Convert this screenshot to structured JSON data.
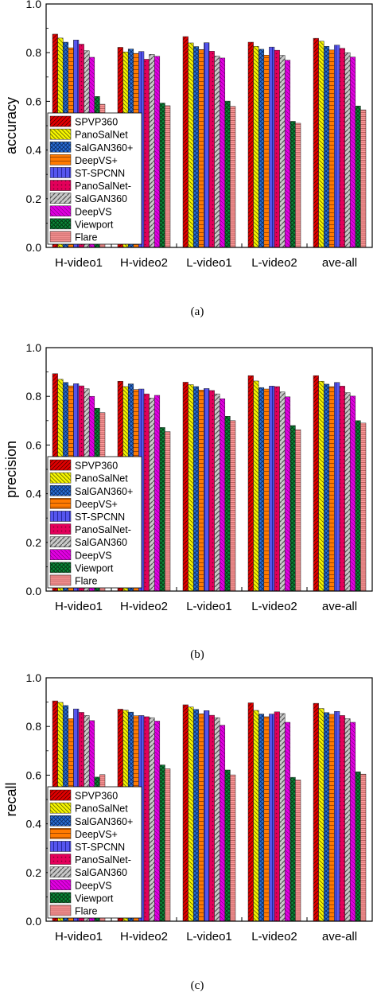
{
  "chart_data": [
    {
      "type": "bar",
      "ylabel": "accuracy",
      "caption": "(a)",
      "categories": [
        "H-video1",
        "H-video2",
        "L-video1",
        "L-video2",
        "ave-all"
      ],
      "ylim": [
        0.0,
        1.0
      ],
      "yticks": [
        "0.0",
        "0.2",
        "0.4",
        "0.6",
        "0.8",
        "1.0"
      ],
      "legend_position": "bottom-left",
      "series": [
        {
          "name": "SPVP360",
          "values": [
            0.876,
            0.822,
            0.866,
            0.843,
            0.859
          ]
        },
        {
          "name": "PanoSalNet",
          "values": [
            0.86,
            0.803,
            0.84,
            0.826,
            0.847
          ]
        },
        {
          "name": "SalGAN360+",
          "values": [
            0.843,
            0.815,
            0.825,
            0.814,
            0.826
          ]
        },
        {
          "name": "DeepVS+",
          "values": [
            0.82,
            0.797,
            0.813,
            0.79,
            0.811
          ]
        },
        {
          "name": "ST-SPCNN",
          "values": [
            0.852,
            0.805,
            0.841,
            0.823,
            0.831
          ]
        },
        {
          "name": "PanoSalNet-",
          "values": [
            0.835,
            0.773,
            0.806,
            0.81,
            0.818
          ]
        },
        {
          "name": "SalGAN360",
          "values": [
            0.808,
            0.793,
            0.786,
            0.789,
            0.8
          ]
        },
        {
          "name": "DeepVS",
          "values": [
            0.781,
            0.785,
            0.778,
            0.769,
            0.782
          ]
        },
        {
          "name": "Viewport",
          "values": [
            0.62,
            0.593,
            0.601,
            0.518,
            0.581
          ]
        },
        {
          "name": "Flare",
          "values": [
            0.588,
            0.582,
            0.579,
            0.51,
            0.565
          ]
        }
      ]
    },
    {
      "type": "bar",
      "ylabel": "precision",
      "caption": "(b)",
      "categories": [
        "H-video1",
        "H-video2",
        "L-video1",
        "L-video2",
        "ave-all"
      ],
      "ylim": [
        0.0,
        1.0
      ],
      "yticks": [
        "0.0",
        "0.2",
        "0.4",
        "0.6",
        "0.8",
        "1.0"
      ],
      "legend_position": "bottom-left",
      "series": [
        {
          "name": "SPVP360",
          "values": [
            0.893,
            0.862,
            0.858,
            0.885,
            0.885
          ]
        },
        {
          "name": "PanoSalNet",
          "values": [
            0.87,
            0.84,
            0.848,
            0.863,
            0.862
          ]
        },
        {
          "name": "SalGAN360+",
          "values": [
            0.857,
            0.851,
            0.84,
            0.836,
            0.85
          ]
        },
        {
          "name": "DeepVS+",
          "values": [
            0.843,
            0.828,
            0.826,
            0.83,
            0.84
          ]
        },
        {
          "name": "ST-SPCNN",
          "values": [
            0.852,
            0.83,
            0.832,
            0.842,
            0.857
          ]
        },
        {
          "name": "PanoSalNet-",
          "values": [
            0.843,
            0.81,
            0.824,
            0.84,
            0.842
          ]
        },
        {
          "name": "SalGAN360",
          "values": [
            0.831,
            0.793,
            0.81,
            0.818,
            0.815
          ]
        },
        {
          "name": "DeepVS",
          "values": [
            0.8,
            0.804,
            0.79,
            0.798,
            0.801
          ]
        },
        {
          "name": "Viewport",
          "values": [
            0.751,
            0.672,
            0.718,
            0.68,
            0.7
          ]
        },
        {
          "name": "Flare",
          "values": [
            0.733,
            0.655,
            0.7,
            0.663,
            0.69
          ]
        }
      ]
    },
    {
      "type": "bar",
      "ylabel": "recall",
      "caption": "(c)",
      "categories": [
        "H-video1",
        "H-video2",
        "L-video1",
        "L-video2",
        "ave-all"
      ],
      "ylim": [
        0.0,
        1.0
      ],
      "yticks": [
        "0.0",
        "0.2",
        "0.4",
        "0.6",
        "0.8",
        "1.0"
      ],
      "legend_position": "bottom-left",
      "series": [
        {
          "name": "SPVP360",
          "values": [
            0.905,
            0.871,
            0.889,
            0.897,
            0.895
          ]
        },
        {
          "name": "PanoSalNet",
          "values": [
            0.899,
            0.867,
            0.88,
            0.866,
            0.874
          ]
        },
        {
          "name": "SalGAN360+",
          "values": [
            0.886,
            0.859,
            0.87,
            0.851,
            0.857
          ]
        },
        {
          "name": "DeepVS+",
          "values": [
            0.832,
            0.844,
            0.852,
            0.84,
            0.85
          ]
        },
        {
          "name": "ST-SPCNN",
          "values": [
            0.872,
            0.845,
            0.865,
            0.851,
            0.862
          ]
        },
        {
          "name": "PanoSalNet-",
          "values": [
            0.858,
            0.84,
            0.846,
            0.86,
            0.845
          ]
        },
        {
          "name": "SalGAN360",
          "values": [
            0.845,
            0.836,
            0.836,
            0.853,
            0.832
          ]
        },
        {
          "name": "DeepVS",
          "values": [
            0.824,
            0.822,
            0.805,
            0.817,
            0.817
          ]
        },
        {
          "name": "Viewport",
          "values": [
            0.592,
            0.642,
            0.621,
            0.591,
            0.614
          ]
        },
        {
          "name": "Flare",
          "values": [
            0.602,
            0.626,
            0.601,
            0.58,
            0.604
          ]
        }
      ]
    }
  ],
  "series_style": [
    {
      "fill": "#e30000",
      "pattern": "diag-right",
      "stroke": "#5a0000"
    },
    {
      "fill": "#f5f500",
      "pattern": "diag-left",
      "stroke": "#6a6a00"
    },
    {
      "fill": "#2a6fd6",
      "pattern": "cross",
      "stroke": "#0b2c66"
    },
    {
      "fill": "#ff7a00",
      "pattern": "horizontal",
      "stroke": "#8a3a00"
    },
    {
      "fill": "#5555ee",
      "pattern": "vertical",
      "stroke": "#1a1a88"
    },
    {
      "fill": "#e3005a",
      "pattern": "dots",
      "stroke": "#70002a"
    },
    {
      "fill": "#c9c9c9",
      "pattern": "diag-right-wide",
      "stroke": "#555555"
    },
    {
      "fill": "#e000e0",
      "pattern": "diag-left-thin",
      "stroke": "#700070"
    },
    {
      "fill": "#0b8a3a",
      "pattern": "crosshatch-diag",
      "stroke": "#033a14"
    },
    {
      "fill": "#ff9a9a",
      "pattern": "horizontal-thin",
      "stroke": "#a04848"
    }
  ]
}
